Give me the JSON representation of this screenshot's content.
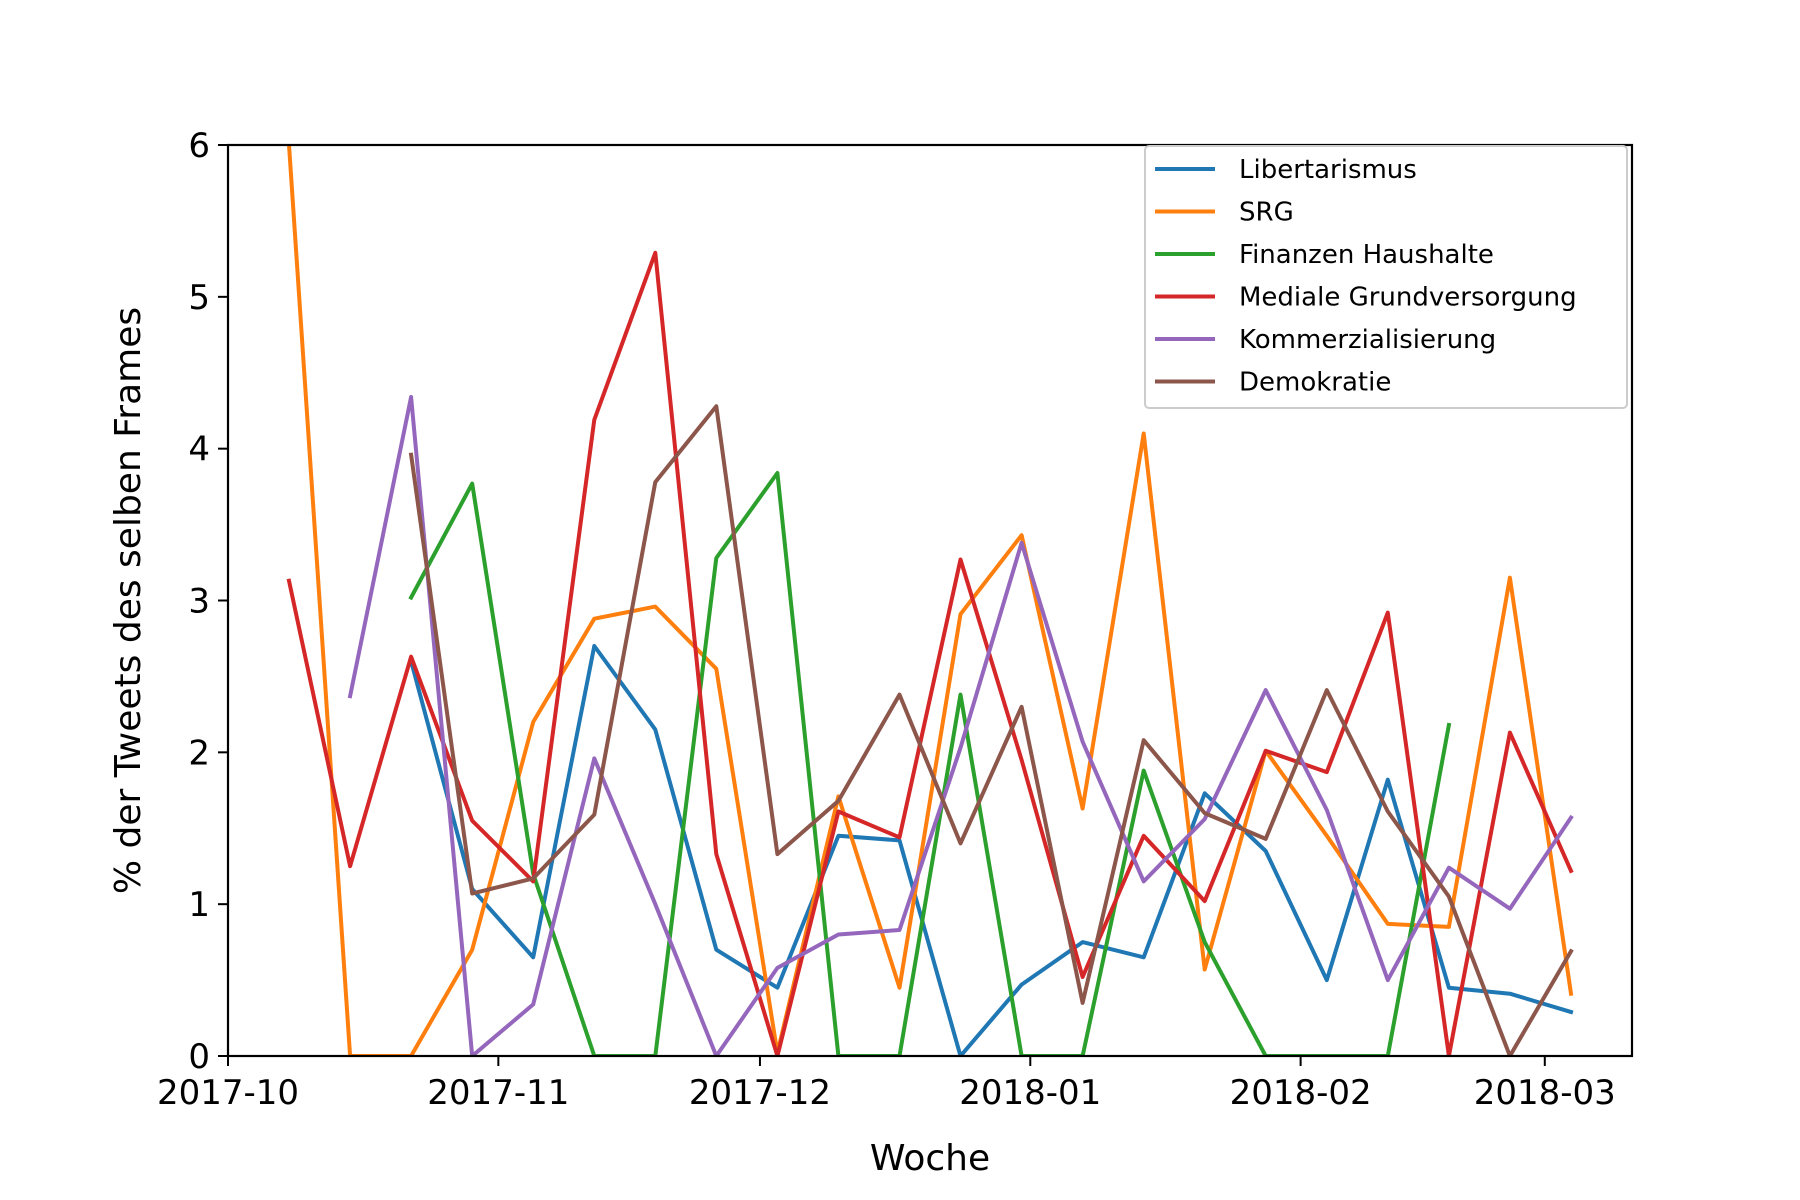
{
  "chart_data": {
    "type": "line",
    "xlabel": "Woche",
    "ylabel": "% der Tweets des selben Frames",
    "ylim": [
      0,
      6
    ],
    "xlim": [
      "2017-10-01",
      "2018-03-11"
    ],
    "yticks": [
      0,
      1,
      2,
      3,
      4,
      5,
      6
    ],
    "xticks": [
      "2017-10",
      "2017-11",
      "2017-12",
      "2018-01",
      "2018-02",
      "2018-03"
    ],
    "xtick_dates": [
      "2017-10-01",
      "2017-11-01",
      "2017-12-01",
      "2018-01-01",
      "2018-02-01",
      "2018-03-01"
    ],
    "grid": false,
    "legend_position": "top-right",
    "x": [
      "2017-10-08",
      "2017-10-15",
      "2017-10-22",
      "2017-10-29",
      "2017-11-05",
      "2017-11-12",
      "2017-11-19",
      "2017-11-26",
      "2017-12-03",
      "2017-12-10",
      "2017-12-17",
      "2017-12-24",
      "2017-12-31",
      "2018-01-07",
      "2018-01-14",
      "2018-01-21",
      "2018-01-28",
      "2018-02-04",
      "2018-02-11",
      "2018-02-18",
      "2018-02-25",
      "2018-03-04"
    ],
    "series": [
      {
        "name": "Libertarismus",
        "color": "#1f77b4",
        "values": [
          null,
          null,
          2.6,
          1.1,
          0.65,
          2.7,
          2.15,
          0.7,
          0.45,
          1.45,
          1.42,
          0.0,
          0.47,
          0.75,
          0.65,
          1.73,
          1.35,
          0.5,
          1.82,
          0.45,
          0.41,
          0.29
        ]
      },
      {
        "name": "SRG",
        "color": "#ff7f0e",
        "values": [
          6.0,
          0.0,
          0.0,
          0.7,
          2.2,
          2.88,
          2.96,
          2.55,
          0.02,
          1.71,
          0.45,
          2.91,
          3.43,
          1.63,
          4.1,
          0.57,
          2.01,
          1.45,
          0.87,
          0.85,
          3.15,
          0.41
        ]
      },
      {
        "name": "Finanzen Haushalte",
        "color": "#2ca02c",
        "values": [
          null,
          null,
          3.02,
          3.77,
          1.2,
          0.0,
          0.0,
          3.28,
          3.84,
          0.0,
          0.0,
          2.38,
          0.0,
          0.0,
          1.88,
          0.75,
          0.0,
          0.0,
          0.0,
          2.18,
          null,
          null
        ]
      },
      {
        "name": "Mediale Grundversorgung",
        "color": "#d62728",
        "values": [
          3.13,
          1.25,
          2.63,
          1.55,
          1.15,
          4.19,
          5.29,
          1.33,
          0.0,
          1.61,
          1.44,
          3.27,
          1.95,
          0.52,
          1.45,
          1.02,
          2.01,
          1.87,
          2.92,
          0.0,
          2.13,
          1.22
        ]
      },
      {
        "name": "Kommerzialisierung",
        "color": "#9467bd",
        "values": [
          null,
          2.37,
          4.34,
          0.0,
          0.34,
          1.96,
          1.0,
          0.0,
          0.58,
          0.8,
          0.83,
          2.03,
          3.38,
          2.07,
          1.15,
          1.56,
          2.41,
          1.62,
          0.5,
          1.24,
          0.97,
          1.57
        ]
      },
      {
        "name": "Demokratie",
        "color": "#8c564b",
        "values": [
          null,
          null,
          3.96,
          1.07,
          1.17,
          1.59,
          3.78,
          4.28,
          1.33,
          1.68,
          2.38,
          1.4,
          2.3,
          0.35,
          2.08,
          1.6,
          1.43,
          2.41,
          1.61,
          1.05,
          0.0,
          0.69
        ]
      }
    ]
  }
}
